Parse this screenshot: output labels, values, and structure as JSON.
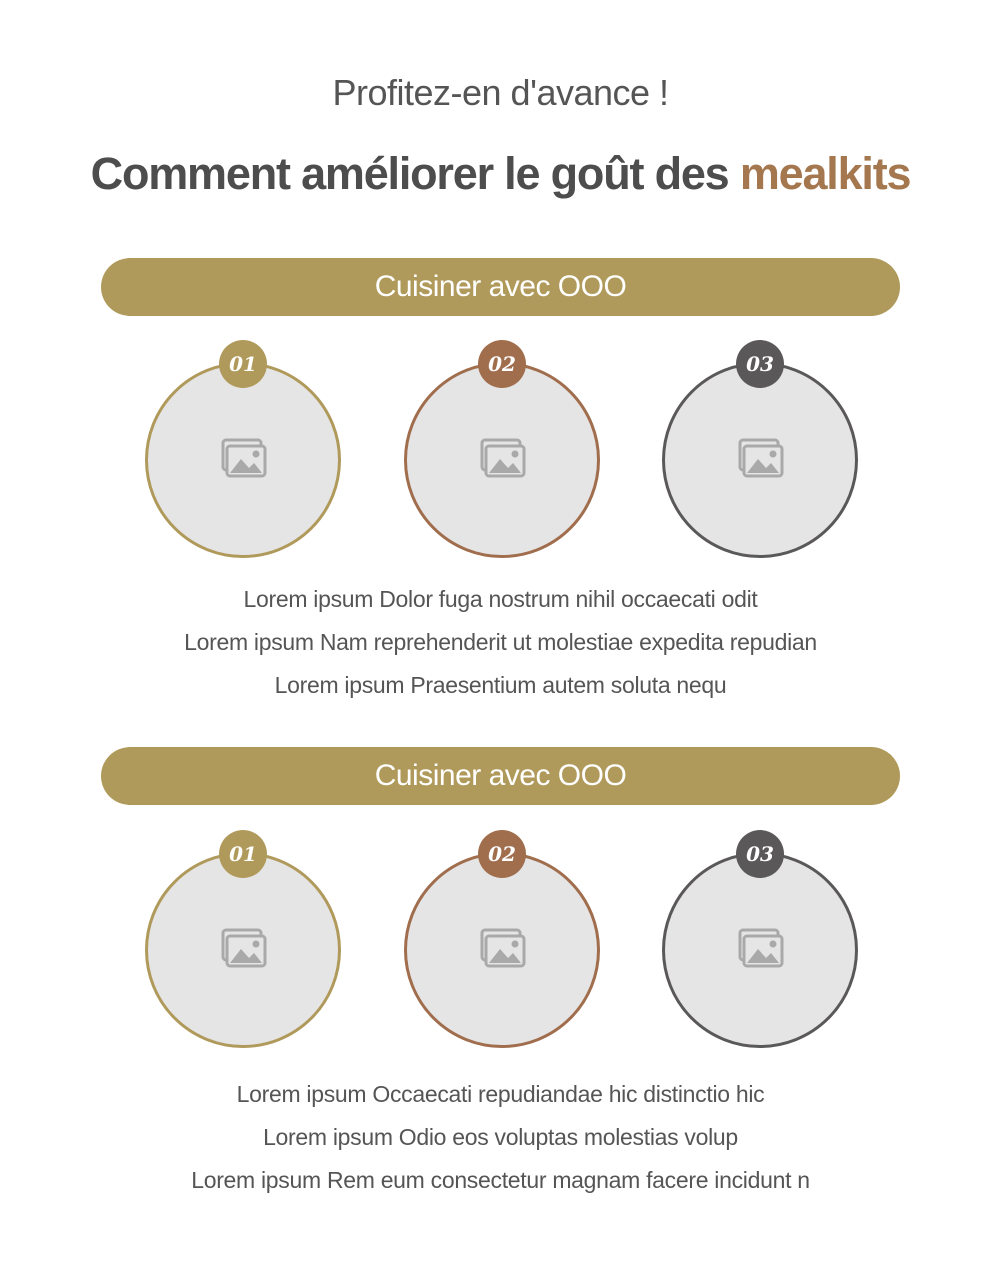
{
  "header": {
    "subtitle": "Profitez-en d'avance !",
    "title_main": "Comment améliorer le goût des ",
    "title_accent": "mealkits"
  },
  "colors": {
    "gold": "#b09a5b",
    "brown": "#a06d4d",
    "dark": "#5a5858",
    "accent_text": "#a4774f",
    "placeholder_bg": "#e6e5e6"
  },
  "sections": [
    {
      "pill_label": "Cuisiner avec OOO",
      "items": [
        {
          "badge": "01",
          "icon": "image-placeholder-icon"
        },
        {
          "badge": "02",
          "icon": "image-placeholder-icon"
        },
        {
          "badge": "03",
          "icon": "image-placeholder-icon"
        }
      ],
      "lines": [
        "Lorem ipsum Dolor fuga nostrum nihil occaecati odit",
        "Lorem ipsum Nam reprehenderit ut molestiae expedita repudian",
        "Lorem ipsum Praesentium autem soluta nequ"
      ]
    },
    {
      "pill_label": "Cuisiner avec OOO",
      "items": [
        {
          "badge": "01",
          "icon": "image-placeholder-icon"
        },
        {
          "badge": "02",
          "icon": "image-placeholder-icon"
        },
        {
          "badge": "03",
          "icon": "image-placeholder-icon"
        }
      ],
      "lines": [
        "Lorem ipsum Occaecati repudiandae hic distinctio hic",
        "Lorem ipsum Odio eos voluptas molestias volup",
        "Lorem ipsum Rem eum consectetur magnam facere incidunt n"
      ]
    }
  ]
}
